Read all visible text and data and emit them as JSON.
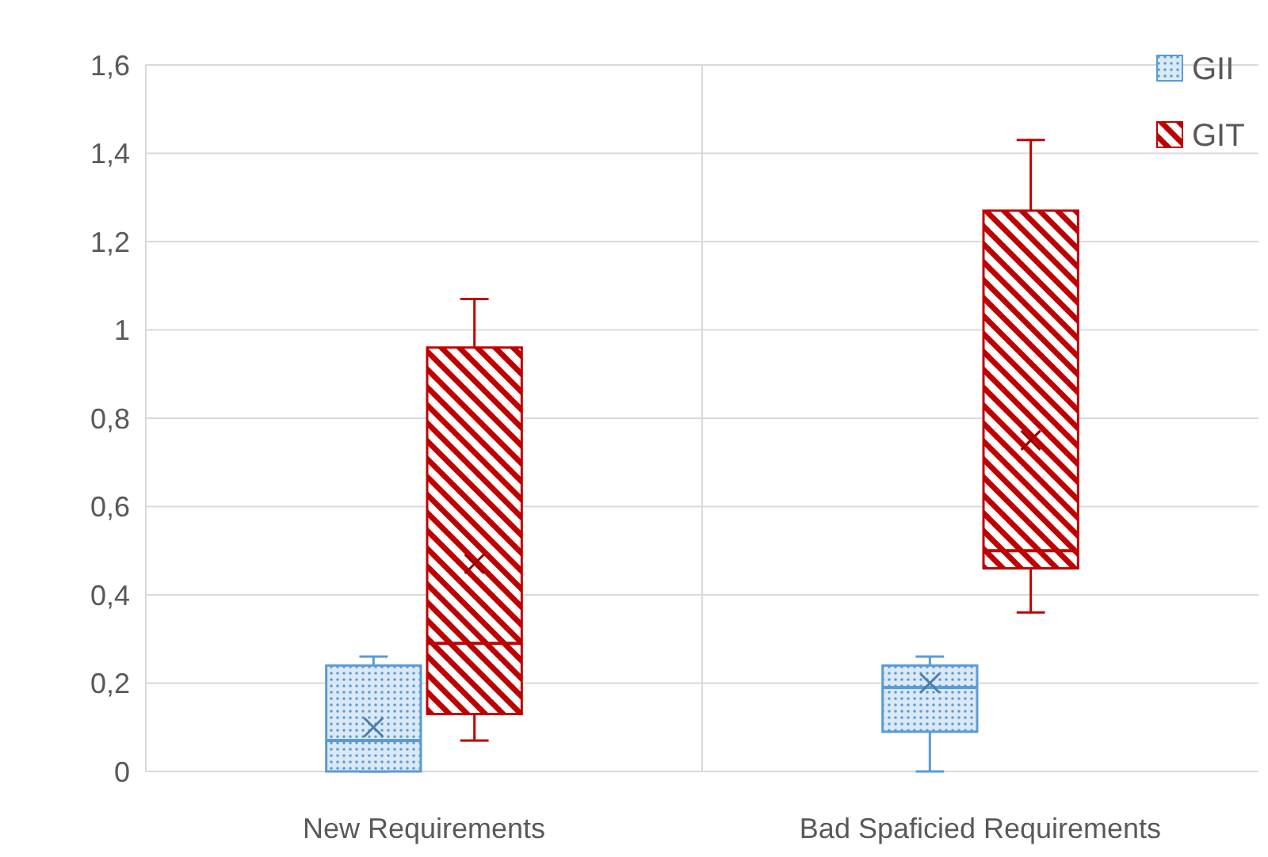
{
  "chart_data": {
    "type": "box",
    "categories": [
      "New Requirements",
      "Bad Spaficied Requirements"
    ],
    "ylim": [
      0,
      1.6
    ],
    "yticks": [
      {
        "value": 0,
        "label": "0"
      },
      {
        "value": 0.2,
        "label": "0,2"
      },
      {
        "value": 0.4,
        "label": "0,4"
      },
      {
        "value": 0.6,
        "label": "0,6"
      },
      {
        "value": 0.8,
        "label": "0,8"
      },
      {
        "value": 1,
        "label": "1"
      },
      {
        "value": 1.2,
        "label": "1,2"
      },
      {
        "value": 1.4,
        "label": "1,4"
      },
      {
        "value": 1.6,
        "label": "1,6"
      }
    ],
    "grid": true,
    "legend": "top right",
    "series": [
      {
        "name": "GII",
        "color": "#5b9bd5",
        "boxes": [
          {
            "low": 0,
            "q1": 0,
            "median": 0.07,
            "q3": 0.24,
            "high": 0.26,
            "mean": 0.1
          },
          {
            "low": 0,
            "q1": 0.09,
            "median": 0.19,
            "q3": 0.24,
            "high": 0.26,
            "mean": 0.2
          }
        ]
      },
      {
        "name": "GIT",
        "color": "#c00000",
        "boxes": [
          {
            "low": 0.07,
            "q1": 0.13,
            "median": 0.29,
            "q3": 0.96,
            "high": 1.07,
            "mean": 0.47
          },
          {
            "low": 0.36,
            "q1": 0.46,
            "median": 0.5,
            "q3": 1.27,
            "high": 1.43,
            "mean": 0.75
          }
        ]
      }
    ]
  }
}
